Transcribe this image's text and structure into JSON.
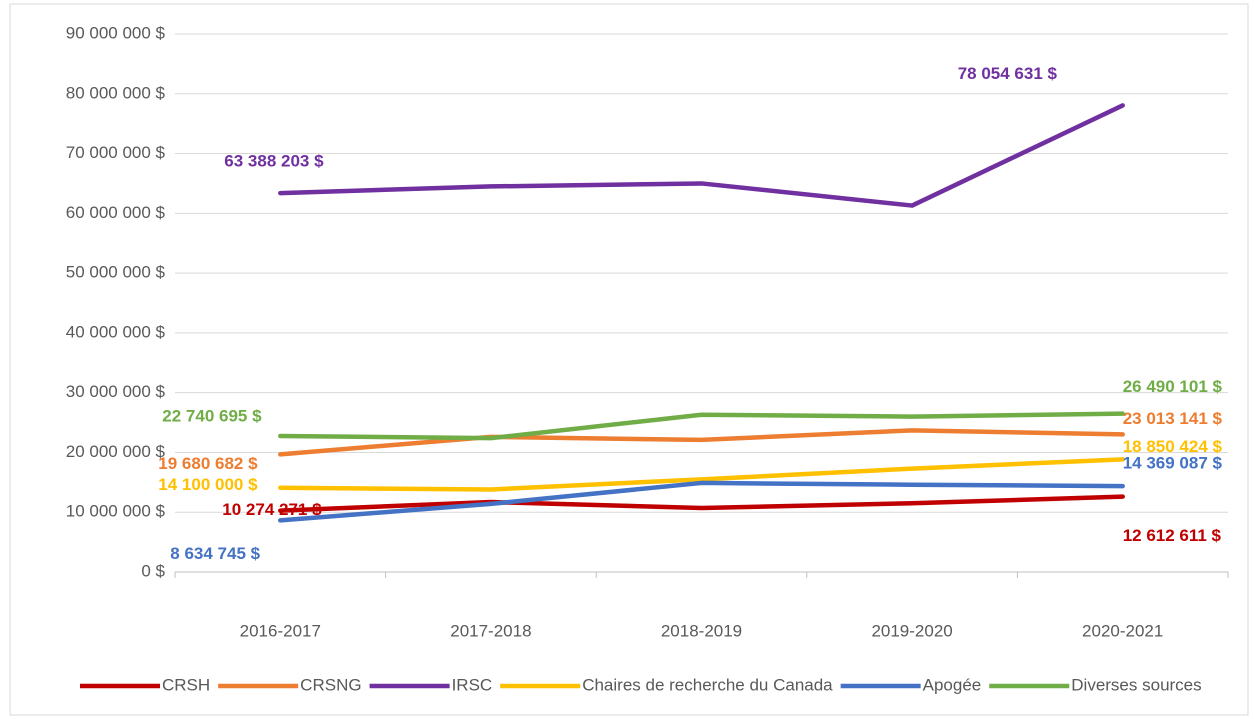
{
  "chart_data": {
    "type": "line",
    "categories": [
      "2016-2017",
      "2017-2018",
      "2018-2019",
      "2019-2020",
      "2020-2021"
    ],
    "series": [
      {
        "name": "CRSH",
        "color": "#c00000",
        "values": [
          10274271,
          11700000,
          10700000,
          11500000,
          12612611
        ],
        "value_labels": [
          "10 274 271 $",
          null,
          null,
          null,
          "12 612 611 $"
        ]
      },
      {
        "name": "CRSNG",
        "color": "#ed7d31",
        "values": [
          19680682,
          22600000,
          22100000,
          23700000,
          23013141
        ],
        "value_labels": [
          "19 680 682 $",
          null,
          null,
          null,
          "23 013 141 $"
        ]
      },
      {
        "name": "IRSC",
        "color": "#7030a0",
        "values": [
          63388203,
          64500000,
          65000000,
          61300000,
          78054631
        ],
        "value_labels": [
          "63 388 203 $",
          null,
          null,
          null,
          "78 054 631 $"
        ]
      },
      {
        "name": "Chaires de recherche du Canada",
        "color": "#ffc000",
        "values": [
          14100000,
          13800000,
          15500000,
          17300000,
          18850424
        ],
        "value_labels": [
          "14 100 000 $",
          null,
          null,
          null,
          "18 850 424 $"
        ]
      },
      {
        "name": "Apogée",
        "color": "#4472c4",
        "values": [
          8634745,
          11400000,
          14900000,
          14600000,
          14369087
        ],
        "value_labels": [
          "8 634 745 $",
          null,
          null,
          null,
          "14 369 087 $"
        ]
      },
      {
        "name": "Diverses sources",
        "color": "#70ad47",
        "values": [
          22740695,
          22400000,
          26300000,
          26000000,
          26490101
        ],
        "value_labels": [
          "22 740 695 $",
          null,
          null,
          null,
          "26 490 101 $"
        ]
      }
    ],
    "ylim": [
      0,
      90000000
    ],
    "yticks": [
      {
        "value": 0,
        "label": "0 $"
      },
      {
        "value": 10000000,
        "label": "10 000 000 $"
      },
      {
        "value": 20000000,
        "label": "20 000 000 $"
      },
      {
        "value": 30000000,
        "label": "30 000 000 $"
      },
      {
        "value": 40000000,
        "label": "40 000 000 $"
      },
      {
        "value": 50000000,
        "label": "50 000 000 $"
      },
      {
        "value": 60000000,
        "label": "60 000 000 $"
      },
      {
        "value": 70000000,
        "label": "70 000 000 $"
      },
      {
        "value": 80000000,
        "label": "80 000 000 $"
      },
      {
        "value": 90000000,
        "label": "90 000 000 $"
      }
    ],
    "grid": true,
    "legend": "bottom"
  }
}
